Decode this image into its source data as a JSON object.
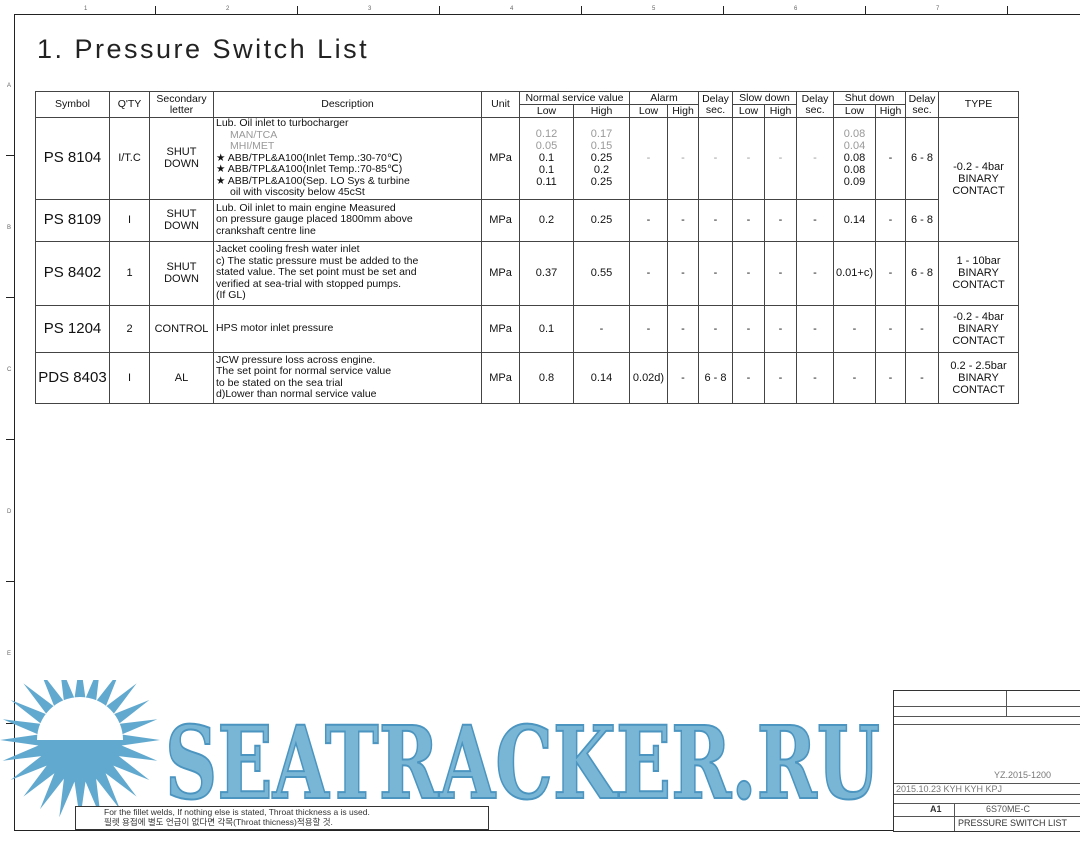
{
  "frame": {
    "columns": [
      "1",
      "2",
      "3",
      "4",
      "5",
      "6",
      "7"
    ],
    "rows": [
      "A",
      "B",
      "C",
      "D",
      "E"
    ]
  },
  "title": "1. Pressure Switch List",
  "header": {
    "symbol": "Symbol",
    "qty": "Q'TY",
    "secondary": "Secondary letter",
    "description": "Description",
    "unit": "Unit",
    "normal": "Normal service value",
    "alarm": "Alarm",
    "delay": "Delay sec.",
    "slow": "Slow down",
    "shut": "Shut down",
    "type": "TYPE",
    "low": "Low",
    "high": "High"
  },
  "rows": [
    {
      "symbol": "PS 8104",
      "qty": "I/T.C",
      "secondary": "SHUT DOWN",
      "description": [
        {
          "text": "Lub. Oil inlet to turbocharger"
        },
        {
          "text": "MAN/TCA",
          "muted": true,
          "indent": true
        },
        {
          "text": "MHI/MET",
          "muted": true,
          "indent": true
        },
        {
          "text": "★ ABB/TPL&A100(Inlet Temp.:30-70℃)"
        },
        {
          "text": "★ ABB/TPL&A100(Inlet Temp.:70-85℃)"
        },
        {
          "text": "★ ABB/TPL&A100(Sep. LO Sys & turbine"
        },
        {
          "text": "oil with viscosity below 45cSt",
          "indent": true
        }
      ],
      "unit": "MPa",
      "nsv_low": [
        {
          "text": "0.12",
          "muted": true
        },
        {
          "text": "0.05",
          "muted": true
        },
        {
          "text": "0.1"
        },
        {
          "text": "0.1"
        },
        {
          "text": "0.11"
        }
      ],
      "nsv_high": [
        {
          "text": "0.17",
          "muted": true
        },
        {
          "text": "0.15",
          "muted": true
        },
        {
          "text": "0.25"
        },
        {
          "text": "0.2"
        },
        {
          "text": "0.25"
        }
      ],
      "alarm_low": [
        {
          "text": "-",
          "muted": true
        }
      ],
      "alarm_high": [
        {
          "text": "-",
          "muted": true
        }
      ],
      "alarm_delay": [
        {
          "text": "-",
          "muted": true
        }
      ],
      "slow_low": [
        {
          "text": "-",
          "muted": true
        }
      ],
      "slow_high": [
        {
          "text": "-",
          "muted": true
        }
      ],
      "slow_delay": [
        {
          "text": "-",
          "muted": true
        }
      ],
      "shut_low": [
        {
          "text": "0.08",
          "muted": true
        },
        {
          "text": "0.04",
          "muted": true
        },
        {
          "text": "0.08"
        },
        {
          "text": "0.08"
        },
        {
          "text": "0.09"
        }
      ],
      "shut_high": [
        {
          "text": "-"
        }
      ],
      "shut_delay": [
        {
          "text": "6 - 8"
        }
      ],
      "type": [
        {
          "text": "-0.2 - 4bar"
        },
        {
          "text": "BINARY"
        },
        {
          "text": "CONTACT"
        }
      ],
      "type_span": 2
    },
    {
      "symbol": "PS 8109",
      "qty": "I",
      "secondary": "SHUT DOWN",
      "description": [
        {
          "text": "Lub. Oil inlet to main engine Measured"
        },
        {
          "text": "on pressure gauge placed 1800mm above"
        },
        {
          "text": "crankshaft centre line"
        }
      ],
      "unit": "MPa",
      "nsv_low": [
        {
          "text": "0.2"
        }
      ],
      "nsv_high": [
        {
          "text": "0.25"
        }
      ],
      "alarm_low": [
        {
          "text": "-"
        }
      ],
      "alarm_high": [
        {
          "text": "-"
        }
      ],
      "alarm_delay": [
        {
          "text": "-"
        }
      ],
      "slow_low": [
        {
          "text": "-"
        }
      ],
      "slow_high": [
        {
          "text": "-"
        }
      ],
      "slow_delay": [
        {
          "text": "-"
        }
      ],
      "shut_low": [
        {
          "text": "0.14"
        }
      ],
      "shut_high": [
        {
          "text": "-"
        }
      ],
      "shut_delay": [
        {
          "text": "6 - 8"
        }
      ],
      "type": null
    },
    {
      "symbol": "PS 8402",
      "qty": "1",
      "secondary": "SHUT DOWN",
      "description": [
        {
          "text": "Jacket cooling fresh water inlet"
        },
        {
          "text": "c) The static pressure must be added to the"
        },
        {
          "text": "stated value. The set point must be set and"
        },
        {
          "text": "verified at sea-trial with stopped pumps."
        },
        {
          "text": "(If GL)"
        }
      ],
      "unit": "MPa",
      "nsv_low": [
        {
          "text": "0.37"
        }
      ],
      "nsv_high": [
        {
          "text": "0.55"
        }
      ],
      "alarm_low": [
        {
          "text": "-"
        }
      ],
      "alarm_high": [
        {
          "text": "-"
        }
      ],
      "alarm_delay": [
        {
          "text": "-"
        }
      ],
      "slow_low": [
        {
          "text": "-"
        }
      ],
      "slow_high": [
        {
          "text": "-"
        }
      ],
      "slow_delay": [
        {
          "text": "-"
        }
      ],
      "shut_low": [
        {
          "text": "0.01+c)"
        }
      ],
      "shut_high": [
        {
          "text": "-"
        }
      ],
      "shut_delay": [
        {
          "text": "6 - 8"
        }
      ],
      "type": [
        {
          "text": "1 - 10bar"
        },
        {
          "text": "BINARY"
        },
        {
          "text": "CONTACT"
        }
      ],
      "type_span": 1
    },
    {
      "symbol": "PS 1204",
      "qty": "2",
      "secondary": "CONTROL",
      "description": [
        {
          "text": "HPS motor inlet pressure"
        }
      ],
      "unit": "MPa",
      "nsv_low": [
        {
          "text": "0.1"
        }
      ],
      "nsv_high": [
        {
          "text": "-"
        }
      ],
      "alarm_low": [
        {
          "text": "-"
        }
      ],
      "alarm_high": [
        {
          "text": "-"
        }
      ],
      "alarm_delay": [
        {
          "text": "-"
        }
      ],
      "slow_low": [
        {
          "text": "-"
        }
      ],
      "slow_high": [
        {
          "text": "-"
        }
      ],
      "slow_delay": [
        {
          "text": "-"
        }
      ],
      "shut_low": [
        {
          "text": "-"
        }
      ],
      "shut_high": [
        {
          "text": "-"
        }
      ],
      "shut_delay": [
        {
          "text": "-"
        }
      ],
      "type": [
        {
          "text": "-0.2 - 4bar"
        },
        {
          "text": "BINARY"
        },
        {
          "text": "CONTACT"
        }
      ],
      "type_span": 1
    },
    {
      "symbol": "PDS 8403",
      "qty": "I",
      "secondary": "AL",
      "description": [
        {
          "text": "JCW pressure loss across engine."
        },
        {
          "text": "The set point for normal service value"
        },
        {
          "text": "to be stated on the sea trial"
        },
        {
          "text": "d)Lower than normal service value"
        }
      ],
      "unit": "MPa",
      "nsv_low": [
        {
          "text": "0.8"
        }
      ],
      "nsv_high": [
        {
          "text": "0.14"
        }
      ],
      "alarm_low": [
        {
          "text": "0.02d)"
        }
      ],
      "alarm_high": [
        {
          "text": "-"
        }
      ],
      "alarm_delay": [
        {
          "text": "6 - 8"
        }
      ],
      "slow_low": [
        {
          "text": "-"
        }
      ],
      "slow_high": [
        {
          "text": "-"
        }
      ],
      "slow_delay": [
        {
          "text": "-"
        }
      ],
      "shut_low": [
        {
          "text": "-"
        }
      ],
      "shut_high": [
        {
          "text": "-"
        }
      ],
      "shut_delay": [
        {
          "text": "-"
        }
      ],
      "type": [
        {
          "text": "0.2 - 2.5bar"
        },
        {
          "text": "BINARY"
        },
        {
          "text": "CONTACT"
        }
      ],
      "type_span": 1
    }
  ],
  "note": {
    "line1": "For the fillet welds, If nothing else is stated, Throat thickness a is used.",
    "line2": "필렛 용접에 별도 언급이 없다면 각목(Throat thicness)적용할 것."
  },
  "title_block": {
    "date_line": "2015.10.23 KYH KYH KPJ",
    "ref": "YZ.2015-1200",
    "size": "A1",
    "engine": "6S70ME-C",
    "drawing_title": "PRESSURE SWITCH LIST"
  },
  "watermark": {
    "text": "SEATRACKER.RU",
    "color": "#62a9cf"
  }
}
